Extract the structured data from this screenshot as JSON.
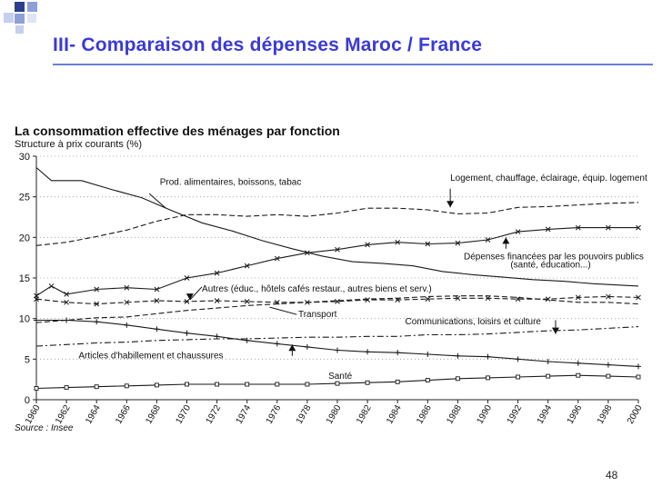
{
  "slide": {
    "title": "III- Comparaison des dépenses Maroc / France",
    "page_number": "48",
    "accent_color": "#3a3ad8",
    "square_colors": [
      "#2c3e90",
      "#8ea0d8",
      "#c5cfee"
    ]
  },
  "chart_data": {
    "type": "line",
    "title": "La consommation effective des ménages par fonction",
    "subtitle": "Structure à prix courants (%)",
    "source": "Source : Insee",
    "xlabel": "",
    "ylabel": "",
    "xlim": [
      1960,
      2000
    ],
    "ylim": [
      0,
      30
    ],
    "y_ticks": [
      0,
      5,
      10,
      15,
      20,
      25,
      30
    ],
    "x_ticks": [
      1960,
      1962,
      1964,
      1966,
      1968,
      1970,
      1972,
      1974,
      1976,
      1978,
      1980,
      1982,
      1984,
      1986,
      1988,
      1990,
      1992,
      1994,
      1996,
      1998,
      2000
    ],
    "grid": "horizontal-dotted",
    "series": [
      {
        "key": "food",
        "name": "Prod. alimentaires, boissons, tabac",
        "style": "solid",
        "marker": "none",
        "x": [
          1960,
          1961,
          1963,
          1965,
          1967,
          1969,
          1971,
          1973,
          1975,
          1977,
          1979,
          1981,
          1983,
          1985,
          1987,
          1989,
          1991,
          1993,
          1995,
          1997,
          2000
        ],
        "y": [
          28.6,
          27.0,
          27.0,
          25.9,
          24.9,
          23.3,
          21.8,
          20.8,
          19.6,
          18.6,
          17.7,
          17.0,
          16.8,
          16.5,
          15.8,
          15.4,
          15.1,
          14.8,
          14.6,
          14.3,
          14.0
        ]
      },
      {
        "key": "housing",
        "name": "Logement, chauffage, éclairage, équip. logement",
        "style": "dashed",
        "marker": "none",
        "x": [
          1960,
          1962,
          1964,
          1966,
          1968,
          1970,
          1972,
          1974,
          1976,
          1978,
          1980,
          1982,
          1984,
          1986,
          1988,
          1990,
          1992,
          1994,
          1996,
          1998,
          2000
        ],
        "y": [
          19.0,
          19.4,
          20.1,
          20.9,
          22.0,
          22.8,
          22.8,
          22.6,
          22.8,
          22.6,
          23.0,
          23.6,
          23.6,
          23.4,
          22.9,
          23.0,
          23.7,
          23.8,
          24.0,
          24.2,
          24.3
        ]
      },
      {
        "key": "public",
        "name": "Dépenses financées par les pouvoirs publics (santé, éducation...)",
        "style": "solid",
        "marker": "x",
        "x": [
          1960,
          1961,
          1962,
          1964,
          1966,
          1968,
          1970,
          1972,
          1974,
          1976,
          1978,
          1980,
          1982,
          1984,
          1986,
          1988,
          1990,
          1992,
          1994,
          1996,
          1998,
          2000
        ],
        "y": [
          12.8,
          14.0,
          13.0,
          13.6,
          13.8,
          13.6,
          15.0,
          15.6,
          16.5,
          17.4,
          18.1,
          18.5,
          19.1,
          19.4,
          19.2,
          19.3,
          19.7,
          20.7,
          21.0,
          21.2,
          21.2,
          21.2
        ]
      },
      {
        "key": "other",
        "name": "Autres (éduc., hôtels cafés restaur., autres biens et serv.)",
        "style": "dashed",
        "marker": "x",
        "x": [
          1960,
          1962,
          1964,
          1966,
          1968,
          1970,
          1972,
          1974,
          1976,
          1978,
          1980,
          1982,
          1984,
          1986,
          1988,
          1990,
          1992,
          1994,
          1996,
          1998,
          2000
        ],
        "y": [
          12.4,
          12.0,
          11.8,
          12.0,
          12.2,
          12.1,
          12.2,
          12.1,
          12.0,
          12.0,
          12.1,
          12.3,
          12.3,
          12.4,
          12.5,
          12.5,
          12.4,
          12.4,
          12.6,
          12.7,
          12.6
        ]
      },
      {
        "key": "transport",
        "name": "Transport",
        "style": "dashed",
        "marker": "none",
        "x": [
          1960,
          1962,
          1964,
          1966,
          1968,
          1970,
          1972,
          1974,
          1976,
          1978,
          1980,
          1982,
          1984,
          1986,
          1988,
          1990,
          1992,
          1994,
          1996,
          1998,
          2000
        ],
        "y": [
          9.5,
          9.8,
          10.1,
          10.2,
          10.6,
          11.0,
          11.3,
          11.6,
          11.8,
          12.0,
          12.2,
          12.4,
          12.5,
          12.7,
          12.8,
          12.8,
          12.6,
          12.3,
          12.0,
          12.0,
          11.8
        ]
      },
      {
        "key": "clothing",
        "name": "Articles d'habillement et chaussures",
        "style": "solid",
        "marker": "plus",
        "x": [
          1960,
          1962,
          1964,
          1966,
          1968,
          1970,
          1972,
          1974,
          1976,
          1978,
          1980,
          1982,
          1984,
          1986,
          1988,
          1990,
          1992,
          1994,
          1996,
          1998,
          2000
        ],
        "y": [
          9.8,
          9.8,
          9.6,
          9.2,
          8.7,
          8.2,
          7.8,
          7.3,
          6.9,
          6.5,
          6.1,
          5.9,
          5.8,
          5.6,
          5.4,
          5.3,
          5.0,
          4.7,
          4.5,
          4.3,
          4.1
        ]
      },
      {
        "key": "communications",
        "name": "Communications, loisirs et culture",
        "style": "dashdot",
        "marker": "none",
        "x": [
          1960,
          1962,
          1964,
          1966,
          1968,
          1970,
          1972,
          1974,
          1976,
          1978,
          1980,
          1982,
          1984,
          1986,
          1988,
          1990,
          1992,
          1994,
          1996,
          1998,
          2000
        ],
        "y": [
          6.6,
          6.8,
          7.0,
          7.1,
          7.3,
          7.4,
          7.5,
          7.5,
          7.6,
          7.7,
          7.7,
          7.8,
          7.8,
          8.0,
          8.0,
          8.1,
          8.3,
          8.5,
          8.6,
          8.8,
          9.0
        ]
      },
      {
        "key": "health",
        "name": "Santé",
        "style": "solid",
        "marker": "square",
        "x": [
          1960,
          1962,
          1964,
          1966,
          1968,
          1970,
          1972,
          1974,
          1976,
          1978,
          1980,
          1982,
          1984,
          1986,
          1988,
          1990,
          1992,
          1994,
          1996,
          1998,
          2000
        ],
        "y": [
          1.4,
          1.5,
          1.6,
          1.7,
          1.8,
          1.9,
          1.9,
          1.9,
          1.9,
          1.9,
          2.0,
          2.1,
          2.2,
          2.4,
          2.6,
          2.7,
          2.8,
          2.9,
          3.0,
          2.9,
          2.8
        ]
      }
    ],
    "annotations": [
      {
        "series": "food",
        "text": "Prod. alimentaires, boissons, tabac",
        "tx": 1968.2,
        "ty": 26.5,
        "ax": 1967.5,
        "ay": 25.4,
        "bx": 1968.6,
        "by": 23.6,
        "arrow": false
      },
      {
        "series": "housing",
        "text": "Logement, chauffage, éclairage, équip. logement",
        "tx": 1987.5,
        "ty": 27.0,
        "ax": 1987.5,
        "ay": 26.0,
        "bx": 1987.5,
        "by": 23.7,
        "arrow": true,
        "arrow_dir": "down"
      },
      {
        "series": "public",
        "text": "Dépenses financées par les pouvoirs publics",
        "tx": 1988.4,
        "ty": 17.3,
        "ax": 1991.2,
        "ay": 18.6,
        "bx": 1991.2,
        "by": 20.0,
        "arrow": true,
        "arrow_dir": "up"
      },
      {
        "series": "public",
        "text": "(santé, éducation...)",
        "tx": 1991.5,
        "ty": 16.3,
        "arrow": false
      },
      {
        "series": "other",
        "text": "Autres (éduc., hôtels cafés restaur., autres biens et serv.)",
        "tx": 1971.0,
        "ty": 13.3,
        "ax": 1971.0,
        "ay": 13.9,
        "bx": 1970.2,
        "by": 12.3,
        "arrow": true,
        "arrow_dir": "down"
      },
      {
        "series": "transport",
        "text": "Transport",
        "tx": 1977.4,
        "ty": 10.2,
        "ax": 1977.3,
        "ay": 10.5,
        "bx": 1975.5,
        "by": 11.4,
        "arrow": false
      },
      {
        "series": "communications",
        "text": "Communications, loisirs et culture",
        "tx": 1984.5,
        "ty": 9.3,
        "ax": 1994.5,
        "ay": 9.8,
        "bx": 1994.5,
        "by": 8.1,
        "arrow": true,
        "arrow_dir": "down"
      },
      {
        "series": "clothing",
        "text": "Articles d'habillement et chaussures",
        "tx": 1962.8,
        "ty": 5.1,
        "ax": 1977.0,
        "ay": 5.4,
        "bx": 1977.0,
        "by": 6.8,
        "arrow": true,
        "arrow_dir": "up"
      },
      {
        "series": "health",
        "text": "Santé",
        "tx": 1979.4,
        "ty": 2.6,
        "arrow": false
      }
    ]
  }
}
